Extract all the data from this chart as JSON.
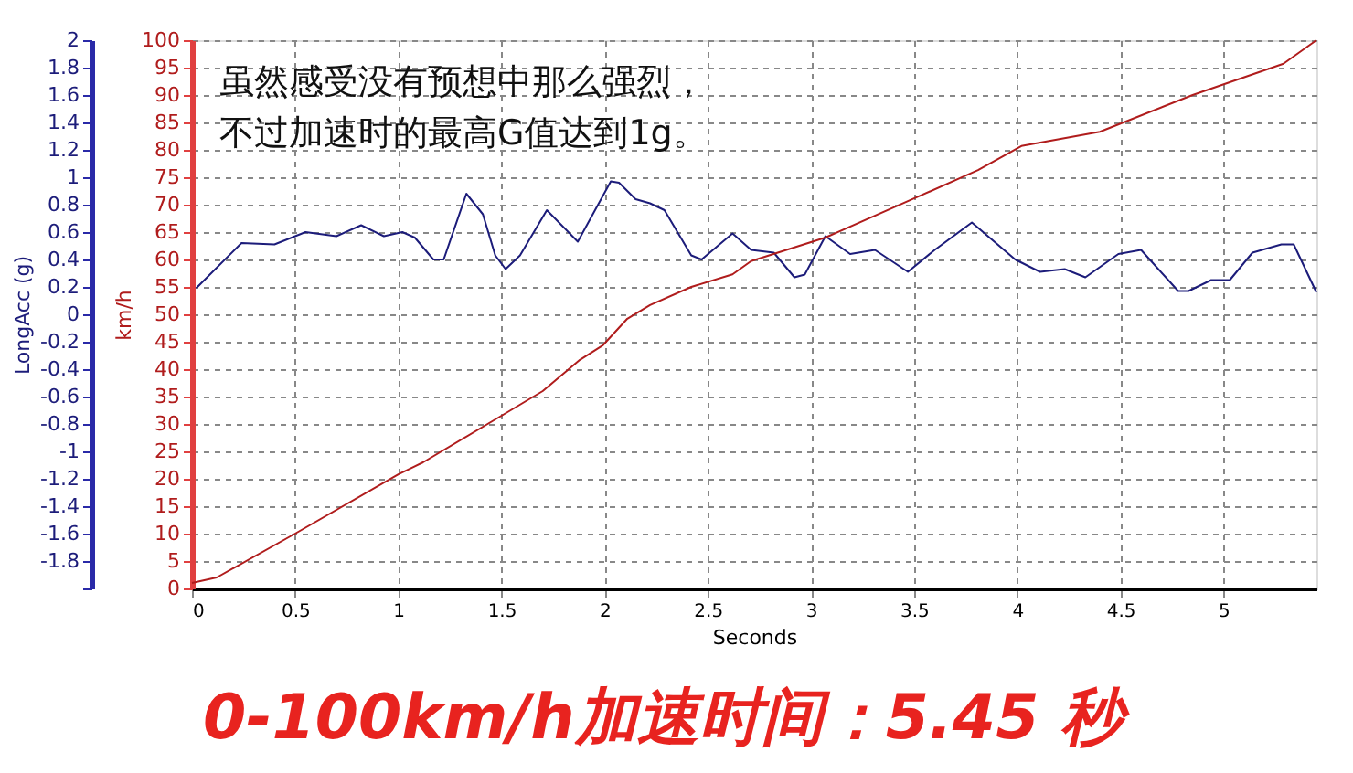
{
  "chart_data": {
    "type": "line",
    "xlabel": "Seconds",
    "ylabel": "LongAcc (g)",
    "y2label": "km/h",
    "annotations": [
      "虽然感受没有预想中那么强烈，",
      "不过加速时的最高G值达到1g。",
      "0-100km/h加速时间：5.45 秒"
    ],
    "xlim": [
      0,
      5.45
    ],
    "xticks": [
      0,
      0.5,
      1,
      1.5,
      2,
      2.5,
      3,
      3.5,
      4,
      4.5,
      5
    ],
    "ylim": [
      -2,
      2
    ],
    "yticks": [
      {
        "value": -2,
        "label": null
      },
      -1.8,
      -1.6,
      -1.4,
      -1.2,
      -1,
      -0.8,
      -0.6,
      -0.4,
      -0.2,
      0,
      0.2,
      0.4,
      0.6,
      0.8,
      1,
      1.2,
      1.4,
      1.6,
      1.8,
      2
    ],
    "y2lim": [
      0,
      100
    ],
    "y2ticks": [
      0,
      5,
      10,
      15,
      20,
      25,
      30,
      35,
      40,
      45,
      50,
      55,
      60,
      65,
      70,
      75,
      80,
      85,
      90,
      95,
      100
    ],
    "grid": true,
    "marker": "none",
    "line_style": "solid",
    "series": [
      {
        "color": "#1c1c7a",
        "x": [
          0.02,
          0.24,
          0.4,
          0.55,
          0.7,
          0.82,
          0.93,
          1.02,
          1.08,
          1.17,
          1.22,
          1.33,
          1.41,
          1.47,
          1.52,
          1.59,
          1.72,
          1.87,
          2.03,
          2.07,
          2.15,
          2.22,
          2.29,
          2.42,
          2.47,
          2.62,
          2.71,
          2.82,
          2.92,
          2.97,
          3.07,
          3.19,
          3.31,
          3.47,
          3.6,
          3.78,
          3.99,
          4.11,
          4.23,
          4.33,
          4.49,
          4.6,
          4.78,
          4.83,
          4.94,
          5.03,
          5.14,
          5.28,
          5.34,
          5.45
        ],
        "values": [
          0.19,
          0.52,
          0.51,
          0.6,
          0.57,
          0.65,
          0.57,
          0.6,
          0.56,
          0.4,
          0.4,
          0.88,
          0.73,
          0.43,
          0.33,
          0.43,
          0.76,
          0.53,
          0.97,
          0.96,
          0.84,
          0.81,
          0.76,
          0.43,
          0.4,
          0.59,
          0.47,
          0.45,
          0.27,
          0.29,
          0.57,
          0.44,
          0.47,
          0.31,
          0.47,
          0.67,
          0.4,
          0.31,
          0.33,
          0.27,
          0.44,
          0.47,
          0.17,
          0.17,
          0.25,
          0.25,
          0.45,
          0.51,
          0.51,
          0.16
        ]
      },
      {
        "color": "#b01c1c",
        "axis": "y2",
        "x": [
          0,
          0.12,
          0.5,
          1.0,
          1.12,
          1.5,
          1.7,
          1.88,
          1.99,
          2.11,
          2.22,
          2.42,
          2.62,
          2.71,
          3.07,
          3.51,
          3.81,
          4.02,
          4.4,
          4.85,
          5.29,
          5.45
        ],
        "values": [
          1,
          2,
          10,
          20.8,
          23,
          31.5,
          36,
          41.7,
          44.3,
          49.2,
          51.7,
          55,
          57.3,
          59.7,
          64,
          71.3,
          76.3,
          80.7,
          83.3,
          90,
          95.7,
          100
        ]
      }
    ]
  }
}
